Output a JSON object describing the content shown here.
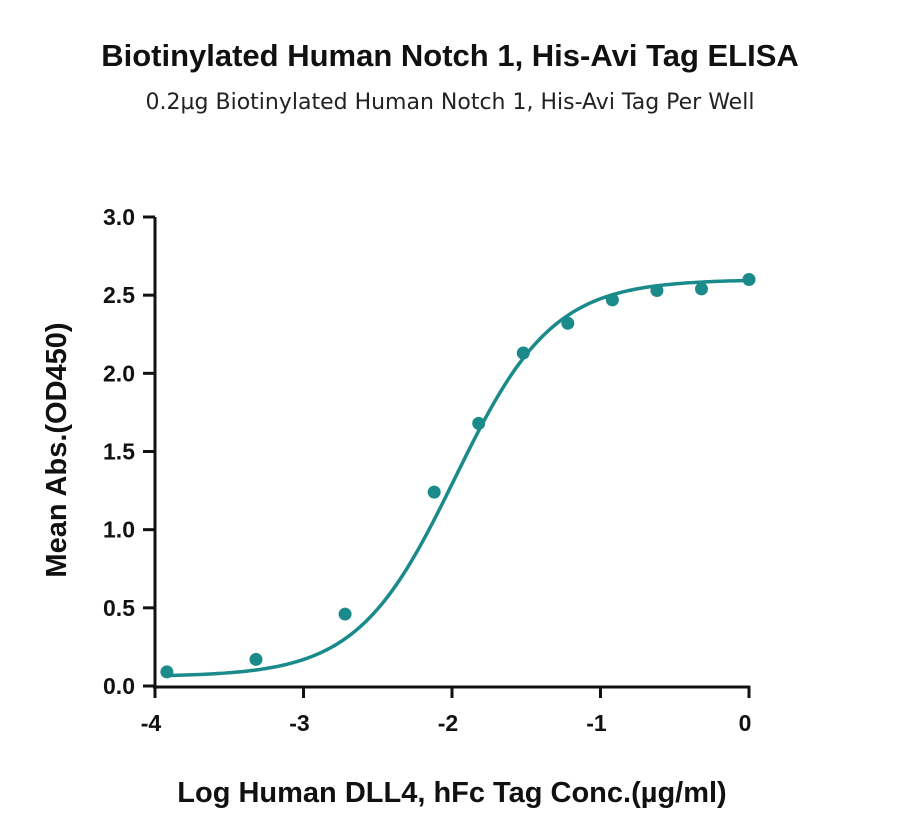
{
  "chart_data": {
    "type": "scatter",
    "title": "Biotinylated Human Notch 1, His-Avi Tag ELISA",
    "subtitle": "0.2µg Biotinylated Human Notch 1, His-Avi Tag Per Well",
    "xlabel": "Log Human DLL4, hFc Tag Conc.(µg/ml)",
    "ylabel": "Mean Abs.(OD450)",
    "xlim": [
      -4,
      0
    ],
    "ylim": [
      0,
      3.0
    ],
    "xticks": [
      -4,
      -3,
      -2,
      -1,
      0
    ],
    "xtick_labels": [
      "-4",
      "-3",
      "-2",
      "-1",
      "0"
    ],
    "yticks": [
      0,
      0.5,
      1.0,
      1.5,
      2.0,
      2.5,
      3.0
    ],
    "ytick_labels": [
      "0.0",
      "0.5",
      "1.0",
      "1.5",
      "2.0",
      "2.5",
      "3.0"
    ],
    "grid": false,
    "color": "#1a8a8a",
    "series": [
      {
        "x": [
          -3.92,
          -3.32,
          -2.72,
          -2.12,
          -1.82,
          -1.52,
          -1.22,
          -0.92,
          -0.62,
          -0.32,
          0.0
        ],
        "y": [
          0.09,
          0.17,
          0.46,
          1.24,
          1.68,
          2.13,
          2.32,
          2.47,
          2.53,
          2.54,
          2.6
        ]
      }
    ],
    "fit": {
      "type": "4PL",
      "bottom": 0.06,
      "top": 2.6,
      "log_ec50": -1.98,
      "hill": 1.32
    }
  }
}
